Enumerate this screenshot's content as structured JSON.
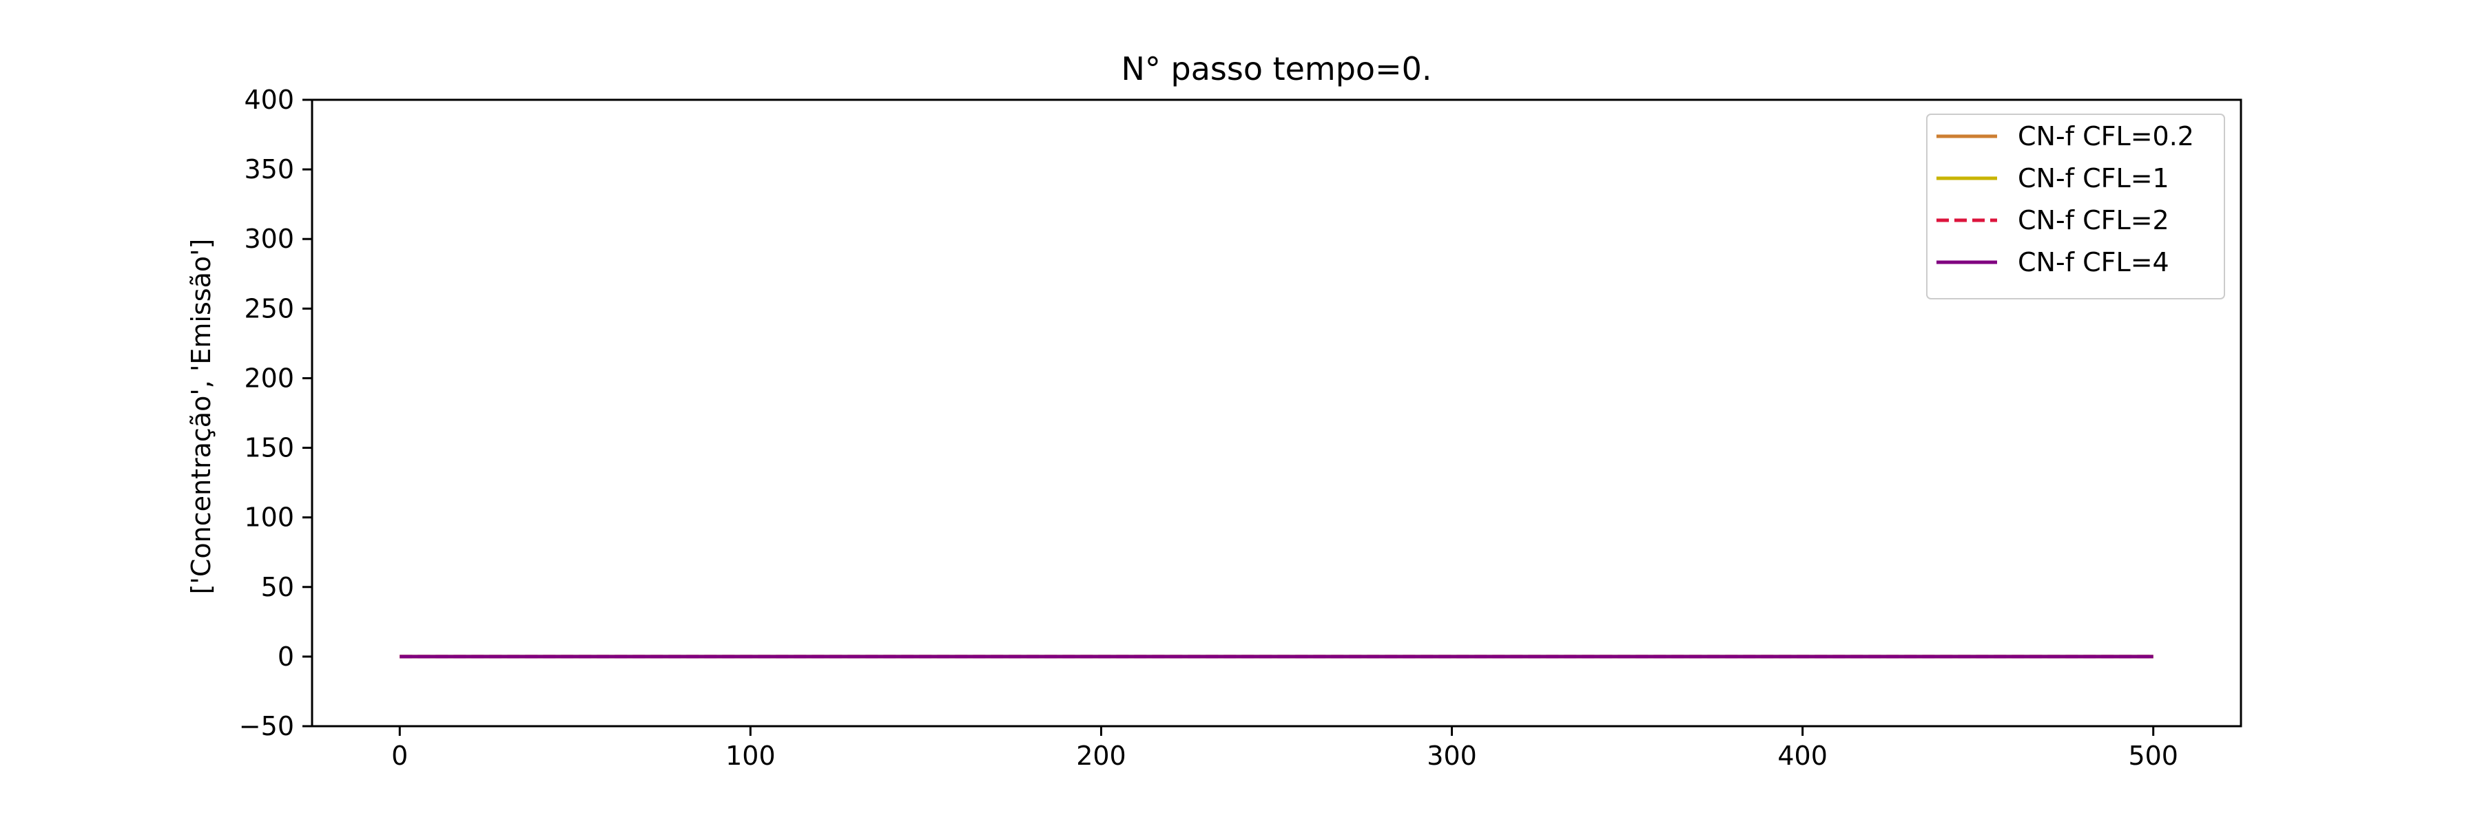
{
  "chart_data": {
    "type": "line",
    "title": "N° passo tempo=0.",
    "xlabel": "",
    "ylabel": "['Concentração', 'Emissão']",
    "xlim": [
      -25,
      525
    ],
    "ylim": [
      -50,
      400
    ],
    "xticks": [
      0,
      100,
      200,
      300,
      400,
      500
    ],
    "yticks": [
      -50,
      0,
      50,
      100,
      150,
      200,
      250,
      300,
      350,
      400
    ],
    "xtick_labels": [
      "0",
      "100",
      "200",
      "300",
      "400",
      "500"
    ],
    "ytick_labels": [
      "−50",
      "0",
      "50",
      "100",
      "150",
      "200",
      "250",
      "300",
      "350",
      "400"
    ],
    "grid": false,
    "legend_position": "top-right",
    "series": [
      {
        "name": "CN-f CFL=0.2",
        "color": "#cd7f32",
        "dash": "solid",
        "x": [
          0,
          500
        ],
        "y": [
          0,
          0
        ]
      },
      {
        "name": "CN-f CFL=1",
        "color": "#c8b400",
        "dash": "solid",
        "x": [
          0,
          500
        ],
        "y": [
          0,
          0
        ]
      },
      {
        "name": "CN-f CFL=2",
        "color": "#dc143c",
        "dash": "dashed",
        "x": [
          0,
          500
        ],
        "y": [
          0,
          0
        ]
      },
      {
        "name": "CN-f CFL=4",
        "color": "#800080",
        "dash": "solid",
        "x": [
          0,
          500
        ],
        "y": [
          0,
          0
        ]
      }
    ]
  }
}
